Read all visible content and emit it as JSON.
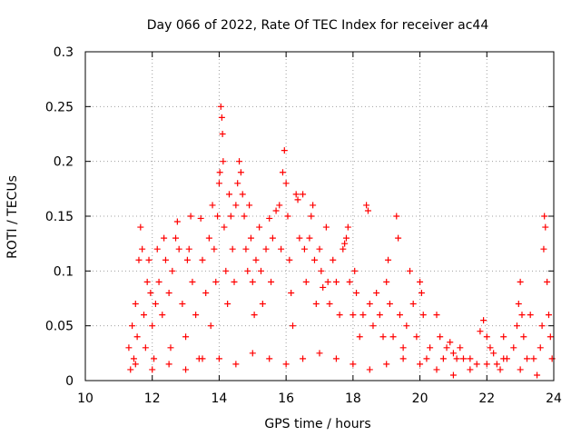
{
  "chart_data": {
    "type": "scatter",
    "title": "Day 066 of 2022, Rate Of TEC Index for receiver ac44",
    "xlabel": "GPS time / hours",
    "ylabel": "ROTI / TECUs",
    "xlim": [
      10,
      24
    ],
    "ylim": [
      0,
      0.3
    ],
    "xticks": [
      "10",
      "12",
      "14",
      "16",
      "18",
      "20",
      "22",
      "24"
    ],
    "yticks": [
      "0",
      "0.05",
      "0.1",
      "0.15",
      "0.2",
      "0.25",
      "0.3"
    ],
    "grid": true,
    "marker": "+",
    "colors": {
      "marker": "#ff0000",
      "grid": "#a0a0a0",
      "axes": "#000000"
    },
    "series": [
      {
        "name": "ROTI",
        "points": [
          [
            11.3,
            0.03
          ],
          [
            11.35,
            0.01
          ],
          [
            11.4,
            0.05
          ],
          [
            11.45,
            0.02
          ],
          [
            11.5,
            0.07
          ],
          [
            11.55,
            0.04
          ],
          [
            11.6,
            0.11
          ],
          [
            11.65,
            0.14
          ],
          [
            11.7,
            0.12
          ],
          [
            11.75,
            0.06
          ],
          [
            11.8,
            0.03
          ],
          [
            11.85,
            0.09
          ],
          [
            11.9,
            0.11
          ],
          [
            11.95,
            0.08
          ],
          [
            12.0,
            0.05
          ],
          [
            12.05,
            0.02
          ],
          [
            12.1,
            0.07
          ],
          [
            12.15,
            0.12
          ],
          [
            12.2,
            0.09
          ],
          [
            12.3,
            0.06
          ],
          [
            12.35,
            0.13
          ],
          [
            12.4,
            0.11
          ],
          [
            12.5,
            0.08
          ],
          [
            12.55,
            0.03
          ],
          [
            12.6,
            0.1
          ],
          [
            12.7,
            0.13
          ],
          [
            12.75,
            0.145
          ],
          [
            12.8,
            0.12
          ],
          [
            12.9,
            0.07
          ],
          [
            13.0,
            0.04
          ],
          [
            13.05,
            0.11
          ],
          [
            13.1,
            0.12
          ],
          [
            13.15,
            0.15
          ],
          [
            13.2,
            0.09
          ],
          [
            13.3,
            0.06
          ],
          [
            13.4,
            0.02
          ],
          [
            13.45,
            0.148
          ],
          [
            13.5,
            0.11
          ],
          [
            13.6,
            0.08
          ],
          [
            13.7,
            0.13
          ],
          [
            13.75,
            0.05
          ],
          [
            13.8,
            0.16
          ],
          [
            13.85,
            0.12
          ],
          [
            13.9,
            0.09
          ],
          [
            13.95,
            0.15
          ],
          [
            14.0,
            0.18
          ],
          [
            14.02,
            0.19
          ],
          [
            14.05,
            0.25
          ],
          [
            14.08,
            0.24
          ],
          [
            14.1,
            0.225
          ],
          [
            14.12,
            0.2
          ],
          [
            14.15,
            0.14
          ],
          [
            14.2,
            0.1
          ],
          [
            14.25,
            0.07
          ],
          [
            14.3,
            0.17
          ],
          [
            14.35,
            0.15
          ],
          [
            14.4,
            0.12
          ],
          [
            14.45,
            0.09
          ],
          [
            14.5,
            0.16
          ],
          [
            14.55,
            0.18
          ],
          [
            14.6,
            0.2
          ],
          [
            14.65,
            0.19
          ],
          [
            14.7,
            0.17
          ],
          [
            14.75,
            0.15
          ],
          [
            14.8,
            0.12
          ],
          [
            14.85,
            0.1
          ],
          [
            14.9,
            0.16
          ],
          [
            14.95,
            0.13
          ],
          [
            15.0,
            0.09
          ],
          [
            15.05,
            0.06
          ],
          [
            15.1,
            0.11
          ],
          [
            15.2,
            0.14
          ],
          [
            15.25,
            0.1
          ],
          [
            15.3,
            0.07
          ],
          [
            15.4,
            0.12
          ],
          [
            15.5,
            0.148
          ],
          [
            15.55,
            0.09
          ],
          [
            15.6,
            0.13
          ],
          [
            15.7,
            0.155
          ],
          [
            15.8,
            0.16
          ],
          [
            15.85,
            0.12
          ],
          [
            15.9,
            0.19
          ],
          [
            15.95,
            0.21
          ],
          [
            16.0,
            0.18
          ],
          [
            16.05,
            0.15
          ],
          [
            16.1,
            0.11
          ],
          [
            16.15,
            0.08
          ],
          [
            16.2,
            0.05
          ],
          [
            16.3,
            0.17
          ],
          [
            16.35,
            0.165
          ],
          [
            16.4,
            0.13
          ],
          [
            16.5,
            0.17
          ],
          [
            16.55,
            0.12
          ],
          [
            16.6,
            0.09
          ],
          [
            16.7,
            0.13
          ],
          [
            16.75,
            0.15
          ],
          [
            16.8,
            0.16
          ],
          [
            16.85,
            0.11
          ],
          [
            16.9,
            0.07
          ],
          [
            17.0,
            0.12
          ],
          [
            17.05,
            0.1
          ],
          [
            17.1,
            0.085
          ],
          [
            17.2,
            0.14
          ],
          [
            17.25,
            0.09
          ],
          [
            17.3,
            0.07
          ],
          [
            17.4,
            0.11
          ],
          [
            17.5,
            0.09
          ],
          [
            17.6,
            0.06
          ],
          [
            17.7,
            0.12
          ],
          [
            17.75,
            0.125
          ],
          [
            17.8,
            0.13
          ],
          [
            17.85,
            0.14
          ],
          [
            17.9,
            0.09
          ],
          [
            18.0,
            0.06
          ],
          [
            18.05,
            0.1
          ],
          [
            18.1,
            0.08
          ],
          [
            18.2,
            0.04
          ],
          [
            18.3,
            0.06
          ],
          [
            18.4,
            0.16
          ],
          [
            18.45,
            0.155
          ],
          [
            18.5,
            0.07
          ],
          [
            18.6,
            0.05
          ],
          [
            18.7,
            0.08
          ],
          [
            18.8,
            0.06
          ],
          [
            18.9,
            0.04
          ],
          [
            19.0,
            0.09
          ],
          [
            19.05,
            0.11
          ],
          [
            19.1,
            0.07
          ],
          [
            19.2,
            0.04
          ],
          [
            19.3,
            0.15
          ],
          [
            19.35,
            0.13
          ],
          [
            19.4,
            0.06
          ],
          [
            19.5,
            0.03
          ],
          [
            19.6,
            0.05
          ],
          [
            19.7,
            0.1
          ],
          [
            19.8,
            0.07
          ],
          [
            19.9,
            0.04
          ],
          [
            20.0,
            0.09
          ],
          [
            20.05,
            0.08
          ],
          [
            20.1,
            0.06
          ],
          [
            20.2,
            0.02
          ],
          [
            20.3,
            0.03
          ],
          [
            20.5,
            0.06
          ],
          [
            20.6,
            0.04
          ],
          [
            20.7,
            0.02
          ],
          [
            20.8,
            0.03
          ],
          [
            20.9,
            0.035
          ],
          [
            21.0,
            0.025
          ],
          [
            21.1,
            0.02
          ],
          [
            21.2,
            0.03
          ],
          [
            21.3,
            0.02
          ],
          [
            21.5,
            0.01
          ],
          [
            21.7,
            0.015
          ],
          [
            21.8,
            0.045
          ],
          [
            21.9,
            0.055
          ],
          [
            22.0,
            0.04
          ],
          [
            22.1,
            0.03
          ],
          [
            22.2,
            0.025
          ],
          [
            22.3,
            0.015
          ],
          [
            22.4,
            0.01
          ],
          [
            22.5,
            0.04
          ],
          [
            22.6,
            0.02
          ],
          [
            22.8,
            0.03
          ],
          [
            22.9,
            0.05
          ],
          [
            22.95,
            0.07
          ],
          [
            23.0,
            0.09
          ],
          [
            23.05,
            0.06
          ],
          [
            23.1,
            0.04
          ],
          [
            23.2,
            0.02
          ],
          [
            23.3,
            0.06
          ],
          [
            23.4,
            0.02
          ],
          [
            23.6,
            0.03
          ],
          [
            23.65,
            0.05
          ],
          [
            23.7,
            0.12
          ],
          [
            23.72,
            0.15
          ],
          [
            23.75,
            0.14
          ],
          [
            23.8,
            0.09
          ],
          [
            23.85,
            0.06
          ],
          [
            23.9,
            0.04
          ],
          [
            23.95,
            0.02
          ],
          [
            11.5,
            0.015
          ],
          [
            12.0,
            0.01
          ],
          [
            12.5,
            0.015
          ],
          [
            13.0,
            0.01
          ],
          [
            13.5,
            0.02
          ],
          [
            14.0,
            0.02
          ],
          [
            14.5,
            0.015
          ],
          [
            15.0,
            0.025
          ],
          [
            15.5,
            0.02
          ],
          [
            16.0,
            0.015
          ],
          [
            16.5,
            0.02
          ],
          [
            17.0,
            0.025
          ],
          [
            17.5,
            0.02
          ],
          [
            18.0,
            0.015
          ],
          [
            18.5,
            0.01
          ],
          [
            19.0,
            0.015
          ],
          [
            19.5,
            0.02
          ],
          [
            20.0,
            0.015
          ],
          [
            20.5,
            0.01
          ],
          [
            21.0,
            0.005
          ],
          [
            21.5,
            0.02
          ],
          [
            22.0,
            0.015
          ],
          [
            22.5,
            0.02
          ],
          [
            23.0,
            0.01
          ],
          [
            23.5,
            0.005
          ]
        ]
      }
    ]
  }
}
